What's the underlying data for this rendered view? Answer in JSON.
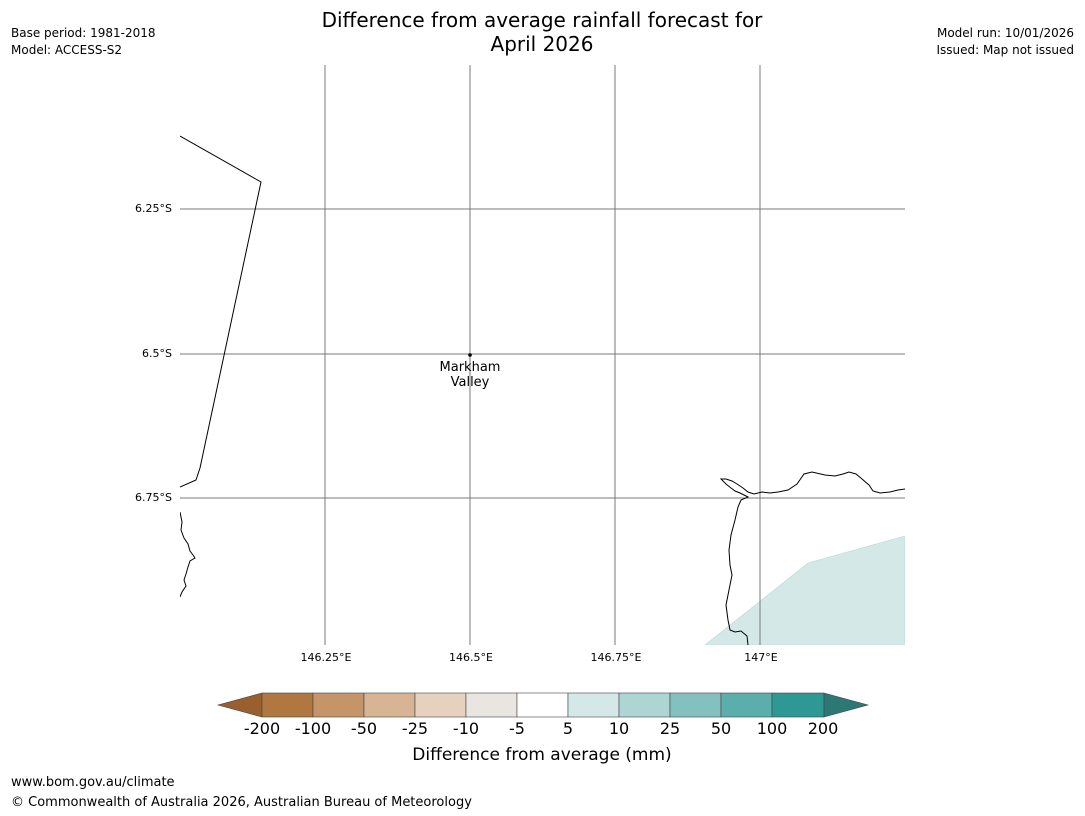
{
  "title_line1": "Difference from average rainfall forecast for",
  "title_line2": "April 2026",
  "meta_left": [
    "Base period: 1981-2018",
    "Model: ACCESS-S2"
  ],
  "meta_right": [
    "Model run: 10/01/2026",
    "Issued: Map not issued"
  ],
  "map": {
    "lat_ticks": [
      "6.25°S",
      "6.5°S",
      "6.75°S"
    ],
    "lon_ticks": [
      "146.25°E",
      "146.5°E",
      "146.75°E",
      "147°E"
    ],
    "place": {
      "name_line1": "Markham",
      "name_line2": "Valley"
    },
    "shaded_region_color": "#d4e8e7"
  },
  "colorbar": {
    "title": "Difference from average (mm)",
    "labels": [
      "-200",
      "-100",
      "-50",
      "-25",
      "-10",
      "-5",
      "5",
      "10",
      "25",
      "50",
      "100",
      "200"
    ],
    "colors": [
      "#9a5f2e",
      "#b07840",
      "#c59468",
      "#d6b494",
      "#e6d1bf",
      "#e9e6e2",
      "#ffffff",
      "#d4e8e7",
      "#acd5d4",
      "#84c1be",
      "#5aaeac",
      "#2e9895",
      "#2d7775"
    ]
  },
  "footer": {
    "url": "www.bom.gov.au/climate",
    "copyright": "© Commonwealth of Australia 2026, Australian Bureau of Meteorology"
  }
}
